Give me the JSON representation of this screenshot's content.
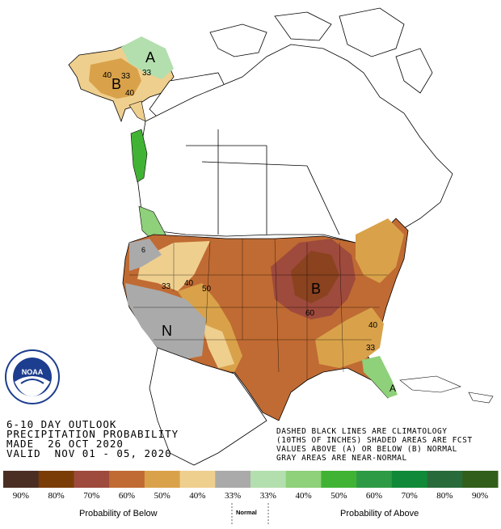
{
  "title": {
    "line1": "6-10 DAY OUTLOOK",
    "line2": "PRECIPITATION PROBABILITY",
    "line3": "MADE  26 OCT 2020",
    "line4": "VALID  NOV 01 - 05, 2020"
  },
  "notes": {
    "line1": "DASHED BLACK LINES ARE CLIMATOLOGY",
    "line2": "(10THS OF INCHES) SHADED AREAS ARE FCST",
    "line3": "VALUES ABOVE (A) OR BELOW (B) NORMAL",
    "line4": "GRAY AREAS ARE NEAR-NORMAL"
  },
  "map_labels": {
    "alaska_above": "A",
    "alaska_below": "B",
    "alaska_40": "40",
    "alaska_33a": "33",
    "alaska_33b": "33",
    "alaska_40b": "40",
    "west_33": "33",
    "west_40": "40",
    "west_50": "50",
    "west_6": "6",
    "midwest_below": "B",
    "midwest_60": "60",
    "southwest_normal": "N",
    "southeast_40": "40",
    "southeast_33": "33",
    "florida_above": "A"
  },
  "logo_text": "NOAA",
  "legend": {
    "swatch_colors": [
      "#4a2e24",
      "#7a3d08",
      "#9e4a3c",
      "#c06b33",
      "#d9a24a",
      "#efcf8e",
      "#aaaaaa",
      "#b3dfae",
      "#8fd07a",
      "#41b334",
      "#2f9a45",
      "#108a38",
      "#296a3a",
      "#315e1a"
    ],
    "percent_labels": [
      "90%",
      "80%",
      "70%",
      "60%",
      "50%",
      "40%",
      "33%",
      "33%",
      "40%",
      "50%",
      "60%",
      "70%",
      "80%",
      "90%"
    ],
    "below_label": "Probability of Below",
    "normal_label": "Normal",
    "above_label": "Probability of Above"
  }
}
